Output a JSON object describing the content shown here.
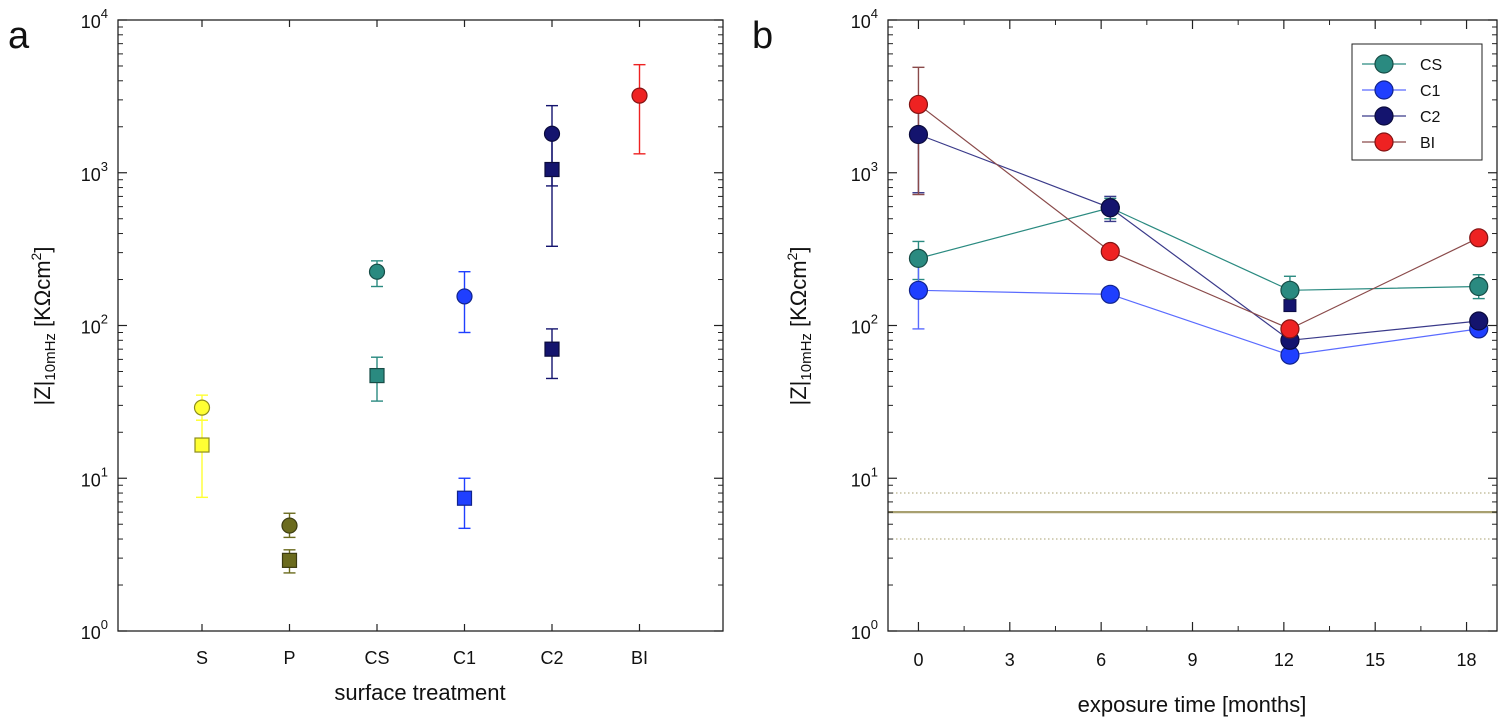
{
  "chart_data": [
    {
      "type": "scatter",
      "panel": "a",
      "yscale": "log",
      "ylim": [
        1,
        10000
      ],
      "ytick_values": [
        1,
        10,
        100,
        1000,
        10000
      ],
      "ytick_labels": [
        [
          "10",
          "0"
        ],
        [
          "10",
          "1"
        ],
        [
          "10",
          "2"
        ],
        [
          "10",
          "3"
        ],
        [
          "10",
          "4"
        ]
      ],
      "ylabel": {
        "main": "|Z|",
        "sub": "10mHz",
        "unit": " [KΩcm",
        "sup": "2",
        "close": "]"
      },
      "xlabel": "surface treatment",
      "categories": [
        "S",
        "P",
        "CS",
        "C1",
        "C2",
        "BI"
      ],
      "series": [
        {
          "name": "circle",
          "marker": "circle",
          "points": [
            {
              "category": "S",
              "value": 29,
              "err_low": 24,
              "err_high": 35,
              "color": "#ffff33"
            },
            {
              "category": "P",
              "value": 4.9,
              "err_low": 4.1,
              "err_high": 5.9,
              "color": "#6b6b1e"
            },
            {
              "category": "CS",
              "value": 225,
              "err_low": 180,
              "err_high": 265,
              "color": "#2a8a80"
            },
            {
              "category": "C1",
              "value": 155,
              "err_low": 90,
              "err_high": 225,
              "color": "#1f3fff"
            },
            {
              "category": "C2",
              "value": 1800,
              "err_low": 820,
              "err_high": 2750,
              "color": "#14146e"
            },
            {
              "category": "BI",
              "value": 3200,
              "err_low": 1330,
              "err_high": 5100,
              "color": "#ee2222"
            }
          ]
        },
        {
          "name": "square",
          "marker": "square",
          "points": [
            {
              "category": "S",
              "value": 16.5,
              "err_low": 7.5,
              "err_high": 24,
              "color": "#ffff33"
            },
            {
              "category": "P",
              "value": 2.9,
              "err_low": 2.4,
              "err_high": 3.4,
              "color": "#6b6b1e"
            },
            {
              "category": "CS",
              "value": 47,
              "err_low": 32,
              "err_high": 62,
              "color": "#2a8a80"
            },
            {
              "category": "C1",
              "value": 7.4,
              "err_low": 4.7,
              "err_high": 10,
              "color": "#1f3fff"
            },
            {
              "category": "C2",
              "value": 1050,
              "err_low": 330,
              "err_high": 1750,
              "color": "#14146e"
            },
            {
              "category": "C2",
              "value": 70,
              "err_low": 45,
              "err_high": 95,
              "color": "#14146e"
            }
          ]
        }
      ]
    },
    {
      "type": "line",
      "panel": "b",
      "yscale": "log",
      "ylim": [
        1,
        10000
      ],
      "xlim": [
        -1,
        19
      ],
      "xticks": [
        0,
        3,
        6,
        9,
        12,
        15,
        18
      ],
      "ytick_values": [
        1,
        10,
        100,
        1000,
        10000
      ],
      "ytick_labels": [
        [
          "10",
          "0"
        ],
        [
          "10",
          "1"
        ],
        [
          "10",
          "2"
        ],
        [
          "10",
          "3"
        ],
        [
          "10",
          "4"
        ]
      ],
      "ylabel": {
        "main": "|Z|",
        "sub": "10mHz",
        "unit": " [KΩcm",
        "sup": "2",
        "close": "]"
      },
      "xlabel": "exposure time [months]",
      "legend_position": "top-right",
      "reference_lines": [
        {
          "y": 6,
          "style": "solid",
          "color": "#a8a070"
        },
        {
          "y": 8,
          "style": "dotted",
          "color": "#a8a070"
        },
        {
          "y": 4,
          "style": "dotted",
          "color": "#a8a070"
        }
      ],
      "series": [
        {
          "name": "CS",
          "color": "#2a8a80",
          "line_color": "#2a8a80",
          "x": [
            0,
            6.3,
            12.2,
            18.4
          ],
          "y": [
            275,
            590,
            170,
            180
          ],
          "err_low": [
            200,
            500,
            140,
            150
          ],
          "err_high": [
            355,
            680,
            210,
            215
          ]
        },
        {
          "name": "C1",
          "color": "#1f3fff",
          "line_color": "#5a6bff",
          "x": [
            0,
            6.3,
            12.2,
            18.4
          ],
          "y": [
            170,
            160,
            64,
            95
          ],
          "err_low": [
            95,
            145,
            58,
            88
          ],
          "err_high": [
            250,
            178,
            72,
            103
          ]
        },
        {
          "name": "C2",
          "color": "#14146e",
          "line_color": "#3a3a8a",
          "x": [
            0,
            6.3,
            12.2,
            18.4
          ],
          "y": [
            1780,
            590,
            80,
            107
          ],
          "err_low": [
            740,
            480,
            72,
            98
          ],
          "err_high": [
            2800,
            700,
            90,
            116
          ]
        },
        {
          "name": "BI",
          "color": "#ee2222",
          "line_color": "#8a4a4a",
          "x": [
            0,
            6.3,
            12.2,
            18.4
          ],
          "y": [
            2800,
            305,
            95,
            375
          ],
          "err_low": [
            720,
            285,
            85,
            355
          ],
          "err_high": [
            4900,
            325,
            105,
            395
          ]
        }
      ],
      "extra_points": [
        {
          "x": 12.2,
          "y": 135,
          "marker": "square",
          "color": "#14146e"
        }
      ]
    }
  ]
}
